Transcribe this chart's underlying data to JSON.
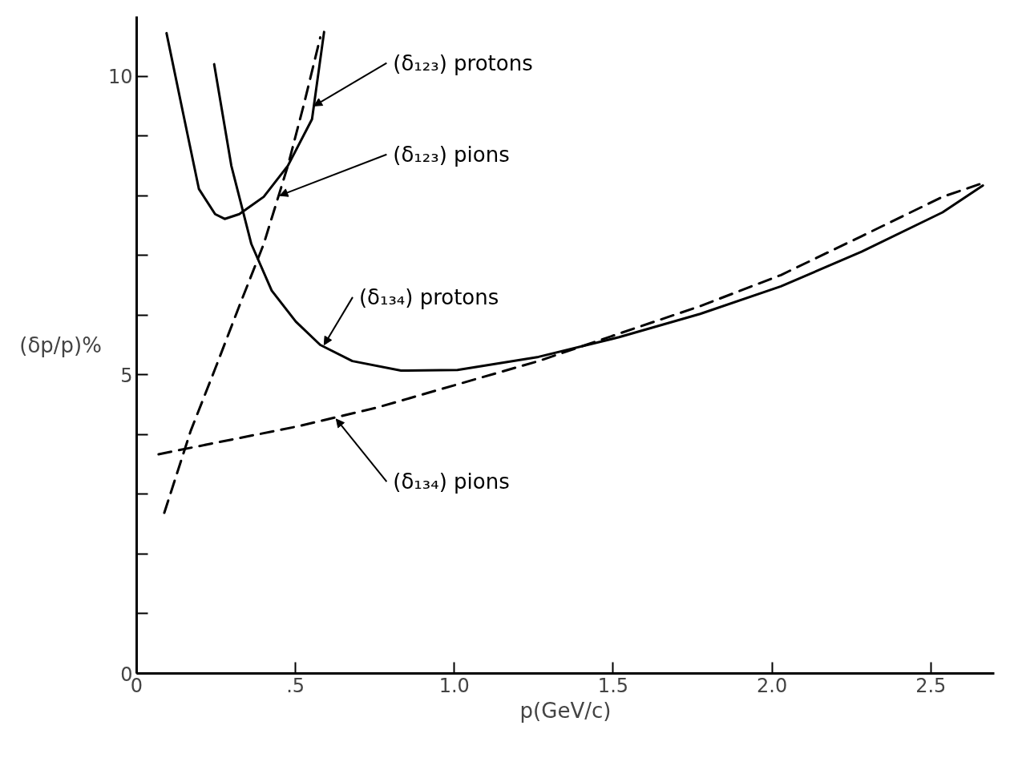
{
  "chart_data": {
    "type": "line",
    "xlabel": "p(GeV/c)",
    "ylabel": "(δp/p)%",
    "xlim": [
      0,
      2.7
    ],
    "ylim": [
      0,
      11
    ],
    "xticks": [
      0,
      {
        "value": 0.5,
        "label": ".5"
      },
      {
        "value": 1.0,
        "label": "1.0"
      },
      1.5,
      {
        "value": 2.0,
        "label": "2.0"
      },
      2.5
    ],
    "yticks": [
      0,
      {
        "value": 1,
        "label": null
      },
      {
        "value": 2,
        "label": null
      },
      {
        "value": 3,
        "label": null
      },
      {
        "value": 4,
        "label": null
      },
      5,
      {
        "value": 6,
        "label": null
      },
      {
        "value": 7,
        "label": null
      },
      {
        "value": 8,
        "label": null
      },
      {
        "value": 9,
        "label": null
      },
      10
    ],
    "grid": false,
    "series": [
      {
        "name": "(δ₁₂₃) protons",
        "color": "#000000",
        "line_style": "solid",
        "x": [
          0.094,
          0.145,
          0.196,
          0.247,
          0.277,
          0.323,
          0.4,
          0.476,
          0.552,
          0.59
        ],
        "values": [
          10.72,
          9.41,
          8.11,
          7.69,
          7.61,
          7.69,
          7.98,
          8.5,
          9.28,
          10.74
        ]
      },
      {
        "name": "(δ₁₂₃) pions",
        "color": "#000000",
        "line_style": "dashed",
        "x": [
          0.087,
          0.17,
          0.247,
          0.323,
          0.4,
          0.476,
          0.527,
          0.578
        ],
        "values": [
          2.69,
          4.06,
          5.1,
          6.15,
          7.19,
          8.5,
          9.54,
          10.65
        ]
      },
      {
        "name": "(δ₁₃₄) protons",
        "color": "#000000",
        "line_style": "solid",
        "x": [
          0.244,
          0.298,
          0.361,
          0.425,
          0.501,
          0.578,
          0.679,
          0.832,
          1.01,
          1.265,
          1.519,
          1.774,
          2.028,
          2.282,
          2.537,
          2.664
        ],
        "values": [
          10.2,
          8.5,
          7.19,
          6.41,
          5.89,
          5.5,
          5.23,
          5.07,
          5.08,
          5.3,
          5.63,
          6.02,
          6.48,
          7.06,
          7.72,
          8.17
        ]
      },
      {
        "name": "(δ₁₃₄) pions",
        "color": "#000000",
        "line_style": "dashed",
        "x": [
          0.069,
          0.247,
          0.501,
          0.756,
          1.01,
          1.265,
          1.519,
          1.774,
          2.028,
          2.282,
          2.537,
          2.664
        ],
        "values": [
          3.67,
          3.86,
          4.13,
          4.45,
          4.84,
          5.23,
          5.69,
          6.15,
          6.67,
          7.32,
          7.98,
          8.21
        ]
      }
    ]
  }
}
